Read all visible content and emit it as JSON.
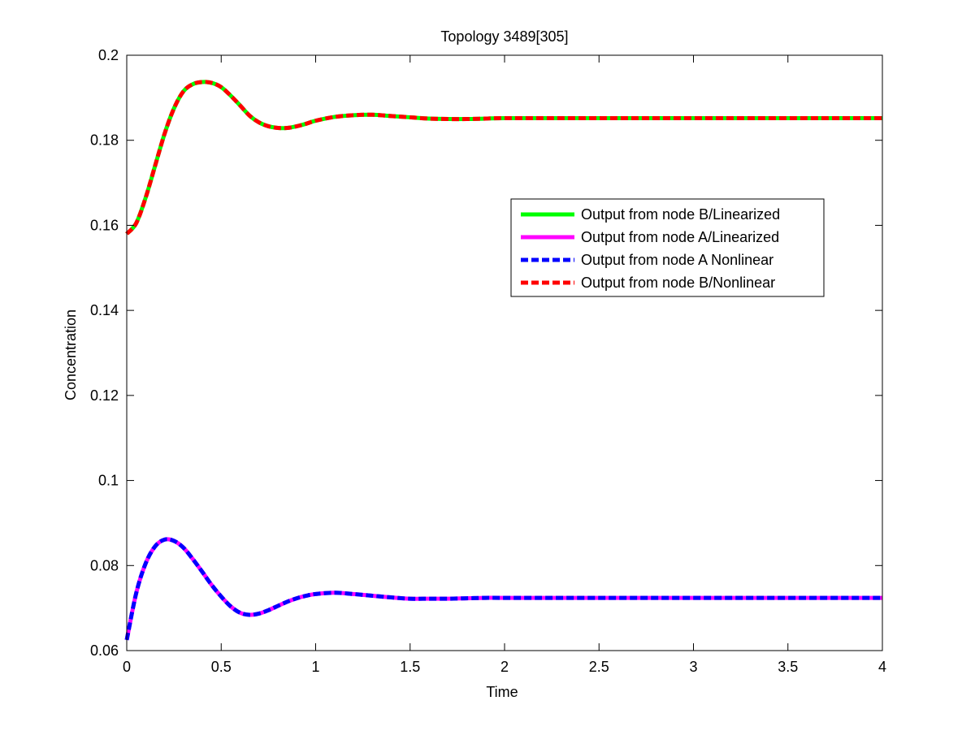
{
  "chart_data": {
    "type": "line",
    "title": "Topology 3489[305]",
    "xlabel": "Time",
    "ylabel": "Concentration",
    "xlim": [
      0,
      4
    ],
    "ylim": [
      0.06,
      0.2
    ],
    "xticks": [
      0,
      0.5,
      1,
      1.5,
      2,
      2.5,
      3,
      3.5,
      4
    ],
    "xtick_labels": [
      "0",
      "0.5",
      "1",
      "1.5",
      "2",
      "2.5",
      "3",
      "3.5",
      "4"
    ],
    "yticks": [
      0.06,
      0.08,
      0.1,
      0.12,
      0.14,
      0.16,
      0.18,
      0.2
    ],
    "ytick_labels": [
      "0.06",
      "0.08",
      "0.1",
      "0.12",
      "0.14",
      "0.16",
      "0.18",
      "0.2"
    ],
    "grid": false,
    "legend_position": "right, upper-middle",
    "series": [
      {
        "name": "Output from node B/Linearized",
        "color": "#00ff00",
        "style": "solid",
        "x": [
          0,
          0.05,
          0.1,
          0.15,
          0.2,
          0.25,
          0.3,
          0.35,
          0.4,
          0.45,
          0.5,
          0.55,
          0.6,
          0.65,
          0.7,
          0.75,
          0.8,
          0.85,
          0.9,
          0.95,
          1.0,
          1.1,
          1.2,
          1.3,
          1.4,
          1.5,
          1.6,
          1.7,
          1.8,
          1.9,
          2.0,
          2.5,
          3.0,
          3.5,
          4.0
        ],
        "values": [
          0.158,
          0.1605,
          0.1665,
          0.174,
          0.1815,
          0.1875,
          0.1915,
          0.1932,
          0.1937,
          0.1935,
          0.1925,
          0.1905,
          0.1882,
          0.1858,
          0.1842,
          0.1833,
          0.1829,
          0.1829,
          0.1833,
          0.1839,
          0.1846,
          0.1855,
          0.1859,
          0.186,
          0.1857,
          0.1854,
          0.1851,
          0.185,
          0.185,
          0.1851,
          0.1852,
          0.1852,
          0.1852,
          0.1852,
          0.1852
        ]
      },
      {
        "name": "Output from node A/Linearized",
        "color": "#ff00ff",
        "style": "solid",
        "x": [
          0,
          0.05,
          0.1,
          0.15,
          0.2,
          0.25,
          0.3,
          0.35,
          0.4,
          0.45,
          0.5,
          0.55,
          0.6,
          0.65,
          0.7,
          0.75,
          0.8,
          0.85,
          0.9,
          0.95,
          1.0,
          1.1,
          1.2,
          1.3,
          1.4,
          1.5,
          1.6,
          1.7,
          1.8,
          1.9,
          2.0,
          2.5,
          3.0,
          3.5,
          4.0
        ],
        "values": [
          0.0625,
          0.0735,
          0.0805,
          0.0845,
          0.0861,
          0.0858,
          0.0842,
          0.0815,
          0.0785,
          0.0754,
          0.0727,
          0.0704,
          0.0689,
          0.0684,
          0.0687,
          0.0695,
          0.0705,
          0.0715,
          0.0723,
          0.0729,
          0.0733,
          0.0736,
          0.0733,
          0.0729,
          0.0725,
          0.0722,
          0.0722,
          0.0722,
          0.0723,
          0.0724,
          0.0724,
          0.0724,
          0.0724,
          0.0724,
          0.0724
        ]
      },
      {
        "name": "Output from node A  Nonlinear",
        "color": "#0000ff",
        "style": "dashed",
        "x": [
          0,
          0.05,
          0.1,
          0.15,
          0.2,
          0.25,
          0.3,
          0.35,
          0.4,
          0.45,
          0.5,
          0.55,
          0.6,
          0.65,
          0.7,
          0.75,
          0.8,
          0.85,
          0.9,
          0.95,
          1.0,
          1.1,
          1.2,
          1.3,
          1.4,
          1.5,
          1.6,
          1.7,
          1.8,
          1.9,
          2.0,
          2.5,
          3.0,
          3.5,
          4.0
        ],
        "values": [
          0.0625,
          0.0735,
          0.0805,
          0.0845,
          0.0861,
          0.0858,
          0.0842,
          0.0815,
          0.0785,
          0.0754,
          0.0727,
          0.0704,
          0.0689,
          0.0684,
          0.0687,
          0.0695,
          0.0705,
          0.0715,
          0.0723,
          0.0729,
          0.0733,
          0.0736,
          0.0733,
          0.0729,
          0.0725,
          0.0722,
          0.0722,
          0.0722,
          0.0723,
          0.0724,
          0.0724,
          0.0724,
          0.0724,
          0.0724,
          0.0724
        ]
      },
      {
        "name": "Output from node B/Nonlinear",
        "color": "#ff0000",
        "style": "dashed",
        "x": [
          0,
          0.05,
          0.1,
          0.15,
          0.2,
          0.25,
          0.3,
          0.35,
          0.4,
          0.45,
          0.5,
          0.55,
          0.6,
          0.65,
          0.7,
          0.75,
          0.8,
          0.85,
          0.9,
          0.95,
          1.0,
          1.1,
          1.2,
          1.3,
          1.4,
          1.5,
          1.6,
          1.7,
          1.8,
          1.9,
          2.0,
          2.5,
          3.0,
          3.5,
          4.0
        ],
        "values": [
          0.158,
          0.1605,
          0.1665,
          0.174,
          0.1815,
          0.1875,
          0.1915,
          0.1932,
          0.1937,
          0.1935,
          0.1925,
          0.1905,
          0.1882,
          0.1858,
          0.1842,
          0.1833,
          0.1829,
          0.1829,
          0.1833,
          0.1839,
          0.1846,
          0.1855,
          0.1859,
          0.186,
          0.1857,
          0.1854,
          0.1851,
          0.185,
          0.185,
          0.1851,
          0.1852,
          0.1852,
          0.1852,
          0.1852,
          0.1852
        ]
      }
    ]
  }
}
